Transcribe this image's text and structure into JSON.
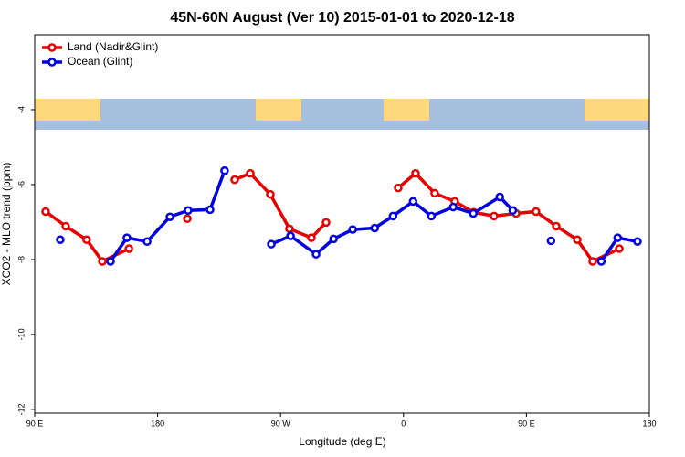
{
  "chart_data": {
    "type": "line",
    "title": "45N-60N August (Ver 10)   2015-01-01 to 2020-12-18",
    "x_label": "Longitude (deg E)",
    "y_label": "XCO2 - MLO trend (ppm)",
    "xlim": [
      90,
      540
    ],
    "ylim": [
      -12.1,
      -2
    ],
    "xticks": [
      {
        "value": 90,
        "label": "90 E"
      },
      180,
      {
        "value": 270,
        "label": "90 W"
      },
      {
        "value": 360,
        "label": "0"
      },
      {
        "value": 450,
        "label": "90 E"
      },
      {
        "value": 540,
        "label": "180"
      }
    ],
    "yticks": [
      -4,
      -6,
      -8,
      -10,
      -12
    ],
    "legend": "top-left",
    "series": [
      {
        "name": "Land (Nadir&Glint)",
        "color": "#e80000",
        "x": [
          98,
          112.7,
          128,
          139.5,
          159,
          null,
          201.7,
          null,
          236.4,
          247.8,
          262.5,
          276.5,
          292.6,
          303.3,
          null,
          356.1,
          368.8,
          382.8,
          397.5,
          411.5,
          426.3,
          442.4,
          457,
          471.8,
          487.2,
          498.5,
          518
        ],
        "values": [
          -6.72,
          -7.11,
          -7.47,
          -8.05,
          -7.71,
          null,
          -6.91,
          null,
          -5.87,
          -5.7,
          -6.26,
          -7.18,
          -7.42,
          -7.01,
          null,
          -6.09,
          -5.7,
          -6.23,
          -6.45,
          -6.74,
          -6.84,
          -6.77,
          -6.72,
          -7.11,
          -7.47,
          -8.05,
          -7.71
        ]
      },
      {
        "name": "Ocean (Glint)",
        "color": "#0000e0",
        "x": [
          108.7,
          null,
          145.5,
          157.5,
          172.3,
          189,
          202.3,
          218.4,
          229,
          null,
          263.2,
          277.3,
          296,
          308.8,
          322.8,
          338.9,
          352.3,
          367,
          380.4,
          396.4,
          411.1,
          430.5,
          440,
          null,
          468,
          null,
          504.8,
          516.8,
          531.3
        ],
        "values": [
          -7.47,
          null,
          -8.05,
          -7.42,
          -7.52,
          -6.86,
          -6.69,
          -6.67,
          -5.63,
          null,
          -7.59,
          -7.37,
          -7.86,
          -7.45,
          -7.2,
          -7.16,
          -6.84,
          -6.45,
          -6.84,
          -6.6,
          -6.77,
          -6.33,
          -6.69,
          null,
          -7.5,
          null,
          -8.05,
          -7.42,
          -7.52
        ]
      }
    ]
  }
}
